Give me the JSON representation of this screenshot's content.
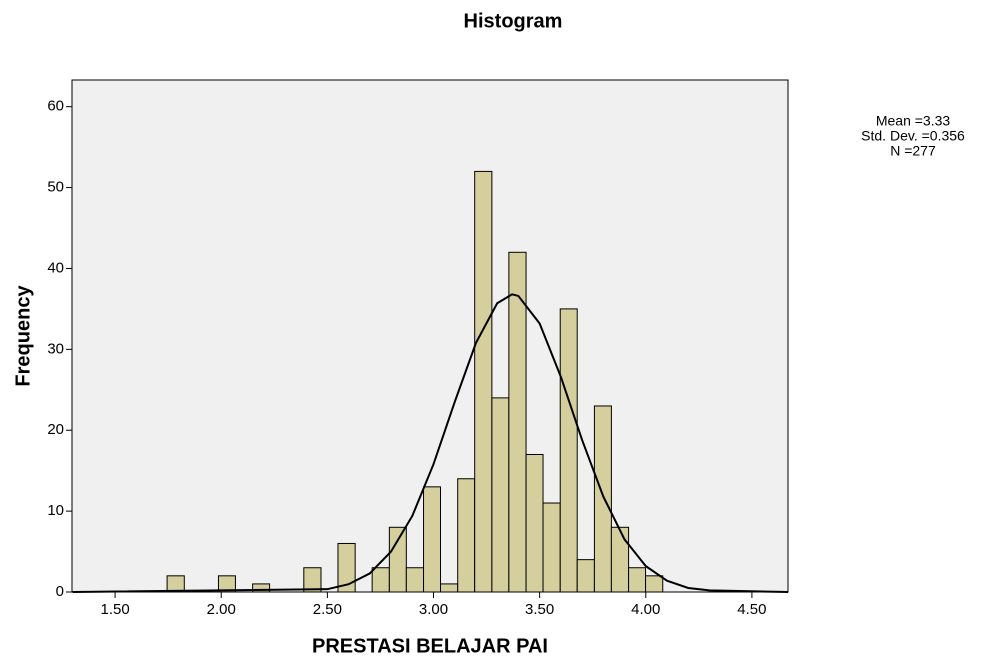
{
  "chart_data": {
    "type": "histogram",
    "title": "Histogram",
    "xlabel": "PRESTASI BELAJAR PAI",
    "ylabel": "Frequency",
    "stats": [
      "Mean =3.33",
      "Std. Dev. =0.356",
      "N =277"
    ],
    "bins": [
      1.745,
      1.826,
      1.906,
      1.987,
      2.067,
      2.148,
      2.228,
      2.309,
      2.389,
      2.47,
      2.55,
      2.631,
      2.711,
      2.792,
      2.872,
      2.953,
      3.033,
      3.114,
      3.194,
      3.275,
      3.355,
      3.436,
      3.516,
      3.597,
      3.677,
      3.758,
      3.838,
      3.919,
      3.999,
      4.08
    ],
    "counts": [
      2,
      0,
      0,
      2,
      0,
      1,
      0,
      0,
      3,
      0,
      6,
      0,
      3,
      8,
      3,
      13,
      1,
      14,
      52,
      24,
      42,
      17,
      11,
      35,
      4,
      23,
      8,
      3,
      2
    ],
    "color": "#d4cf9c",
    "curve": {
      "x": [
        1.3,
        2.5,
        2.6,
        2.7,
        2.8,
        2.9,
        3.0,
        3.1,
        3.2,
        3.3,
        3.37,
        3.4,
        3.5,
        3.6,
        3.7,
        3.8,
        3.9,
        4.0,
        4.1,
        4.2,
        4.3,
        4.67
      ],
      "y": [
        0,
        0.35,
        0.96,
        2.3,
        5.0,
        9.4,
        15.8,
        23.5,
        30.8,
        35.7,
        36.8,
        36.6,
        33.2,
        26.6,
        18.8,
        11.8,
        6.5,
        3.2,
        1.4,
        0.5,
        0.2,
        0
      ]
    },
    "xlim": [
      1.297,
      4.67
    ],
    "ylim": [
      0,
      63.3
    ],
    "xticks": [
      {
        "value": 1.5,
        "label": "1.50"
      },
      {
        "value": 2.0,
        "label": "2.00"
      },
      {
        "value": 2.5,
        "label": "2.50"
      },
      {
        "value": 3.0,
        "label": "3.00"
      },
      {
        "value": 3.5,
        "label": "3.50"
      },
      {
        "value": 4.0,
        "label": "4.00"
      },
      {
        "value": 4.5,
        "label": "4.50"
      }
    ],
    "yticks": [
      0,
      10,
      20,
      30,
      40,
      50,
      60
    ],
    "grid": false
  }
}
